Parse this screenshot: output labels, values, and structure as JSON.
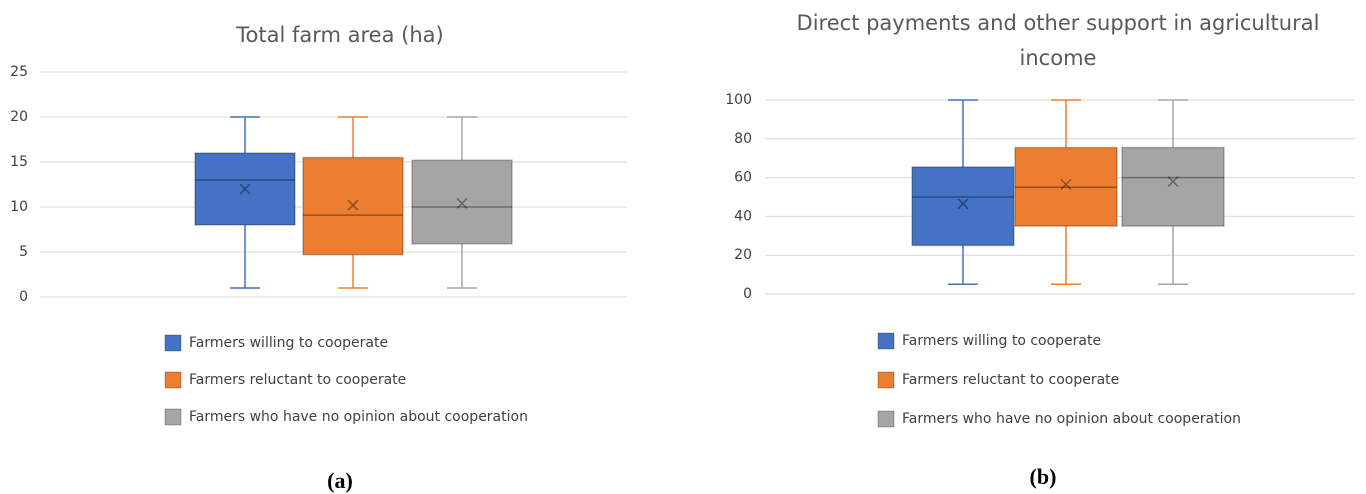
{
  "chart_data": [
    {
      "type": "box",
      "title": "Total farm area (ha)",
      "caption": "(a)",
      "ylim": [
        0,
        25
      ],
      "yticks": [
        0,
        5,
        10,
        15,
        20,
        25
      ],
      "grid": true,
      "series": [
        {
          "name": "Farmers willing to cooperate",
          "color": "#4472c4",
          "min": 1,
          "q1": 8,
          "median": 13,
          "q3": 16,
          "max": 20,
          "mean": 12
        },
        {
          "name": "Farmers reluctant to cooperate",
          "color": "#ed7d31",
          "min": 1,
          "q1": 4.7,
          "median": 9.1,
          "q3": 15.5,
          "max": 20,
          "mean": 10.2
        },
        {
          "name": "Farmers who have no opinion about cooperation",
          "color": "#a5a5a5",
          "min": 1,
          "q1": 5.9,
          "median": 10,
          "q3": 15.2,
          "max": 20,
          "mean": 10.4
        }
      ]
    },
    {
      "type": "box",
      "title": "Direct payments and other support in agricultural income",
      "caption": "(b)",
      "ylim": [
        0,
        100
      ],
      "yticks": [
        0,
        20,
        40,
        60,
        80,
        100
      ],
      "grid": true,
      "series": [
        {
          "name": "Farmers willing to cooperate",
          "color": "#4472c4",
          "min": 5,
          "q1": 25,
          "median": 50,
          "q3": 65.5,
          "max": 100,
          "mean": 46.5
        },
        {
          "name": "Farmers reluctant to cooperate",
          "color": "#ed7d31",
          "min": 5,
          "q1": 35,
          "median": 55,
          "q3": 75.5,
          "max": 100,
          "mean": 56.5
        },
        {
          "name": "Farmers who have no opinion about cooperation",
          "color": "#a5a5a5",
          "min": 5,
          "q1": 35,
          "median": 60,
          "q3": 75.5,
          "max": 100,
          "mean": 58
        }
      ]
    }
  ]
}
